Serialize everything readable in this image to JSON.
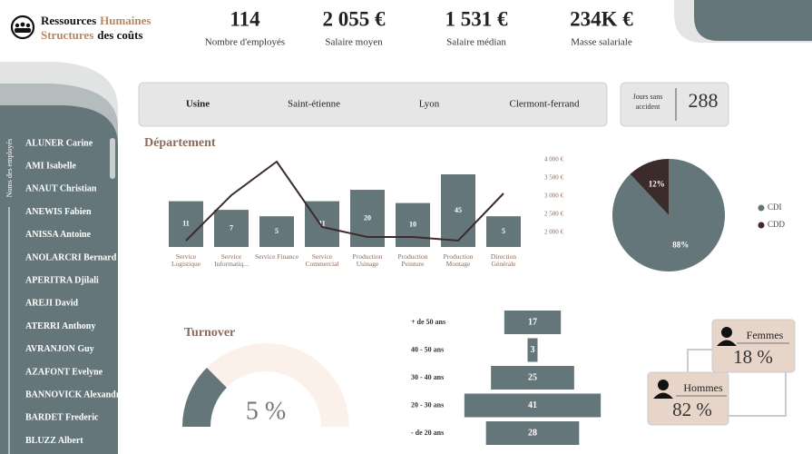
{
  "header": {
    "title": [
      "Ressources",
      "Humaines"
    ],
    "subtitle": [
      "Structures",
      "des coûts"
    ]
  },
  "kpis": [
    {
      "value": "114",
      "label": "Nombre d'employés"
    },
    {
      "value": "2 055 €",
      "label": "Salaire moyen"
    },
    {
      "value": "1 531 €",
      "label": "Salaire médian"
    },
    {
      "value": "234K €",
      "label": "Masse salariale"
    }
  ],
  "sidebar": {
    "label": "Noms des employés",
    "names": [
      "ALUNER Carine",
      "AMI Isabelle",
      "ANAUT Christian",
      "ANEWIS Fabien",
      "ANISSA Antoine",
      "ANOLARCRI Bernard",
      "APERITRA Djilali",
      "AREJI David",
      "ATERRI Anthony",
      "AVRANJON Guy",
      "AZAFONT Evelyne",
      "BANNOVICK Alexandre",
      "BARDET Frederic",
      "BLUZZ Albert"
    ]
  },
  "filters": {
    "tabs": [
      "Usine",
      "Saint-étienne",
      "Lyon",
      "Clermont-ferrand"
    ]
  },
  "accident": {
    "label_lines": [
      "Jours sans",
      "accident"
    ],
    "value": 288
  },
  "chart_data": [
    {
      "type": "bar",
      "title": "Département",
      "categories": [
        "Service Logistique",
        "Service Informatiq...",
        "Service Finance",
        "Service Commercial",
        "Production Usinage",
        "Production Peinture",
        "Production Montage",
        "Direction Générale"
      ],
      "log": true,
      "ylim": [
        1,
        45
      ],
      "series": [
        {
          "color": "#65767a",
          "values": [
            11,
            7,
            5,
            11,
            20,
            10,
            45,
            5
          ]
        },
        {
          "type": "line",
          "axis": "y2",
          "color": "#3b2b2b",
          "values": [
            1775,
            3025,
            3950,
            2150,
            1875,
            1875,
            1775,
            3075
          ]
        }
      ],
      "y2lim": [
        1600,
        4000
      ],
      "y2ticks": [
        {
          "value": 2000,
          "label": "2 000 €"
        },
        {
          "value": 2500,
          "label": "2 500 €"
        },
        {
          "value": 3000,
          "label": "3 000 €"
        },
        {
          "value": 3500,
          "label": "3 500 €"
        },
        {
          "value": 4000,
          "label": "4 000 €"
        }
      ]
    },
    {
      "type": "pie",
      "categories": [
        "CDI",
        "CDD"
      ],
      "values": [
        88,
        12
      ],
      "value_labels": [
        "88%",
        "12%"
      ],
      "colors": [
        "#65767a",
        "#3b2b2b"
      ],
      "legend": "right"
    },
    {
      "type": "gauge",
      "title": "Turnover",
      "value": 5,
      "value_label": "5 %",
      "ylim": [
        0,
        20
      ],
      "color": "#65767a",
      "track_color": "#fbf1ea"
    },
    {
      "type": "funnel",
      "categories": [
        "+ de 50 ans",
        "40 - 50 ans",
        "30 - 40 ans",
        "20 - 30 ans",
        "- de 20 ans"
      ],
      "values": [
        17,
        3,
        25,
        41,
        28
      ],
      "color": "#65767a",
      "xlim": [
        0,
        45
      ]
    }
  ],
  "gender": [
    {
      "label": "Femmes",
      "value": "18 %"
    },
    {
      "label": "Hommes",
      "value": "82 %"
    }
  ]
}
